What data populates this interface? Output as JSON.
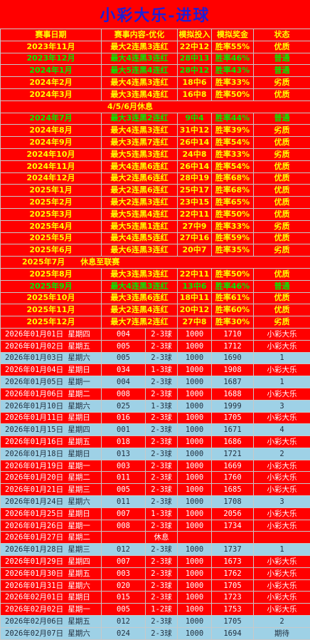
{
  "title": "小彩大乐-进球",
  "colors": {
    "red_bg": "#ff0000",
    "yellow_text": "#ffff00",
    "green_text": "#00ee00",
    "white_text": "#ffffff",
    "blue_bg": "#9ed1e6",
    "dark_text": "#1f2d3d",
    "title_text": "#1c1fd8"
  },
  "header": [
    "赛事日期",
    "赛事内容-优化",
    "模拟投入",
    "模拟奖金",
    "状态"
  ],
  "history": [
    {
      "type": "row",
      "cells": [
        "2023年11月",
        "最大2连黑3连红",
        "22中12",
        "胜率55%",
        "优质"
      ],
      "color": "yellow"
    },
    {
      "type": "row",
      "cells": [
        "2023年12月",
        "最大4连黑3连红",
        "28中13",
        "胜率46%",
        "普通"
      ],
      "color": "green"
    },
    {
      "type": "row",
      "cells": [
        "2024年1月",
        "最大5连黑4连红",
        "28中12",
        "胜率43%",
        "普通"
      ],
      "color": "green"
    },
    {
      "type": "row",
      "cells": [
        "2024年2月",
        "最大4连黑3连红",
        "18中6",
        "胜率33%",
        "劣质"
      ],
      "color": "yellow"
    },
    {
      "type": "row",
      "cells": [
        "2024年3月",
        "最大3连黑4连红",
        "16中8",
        "胜率50%",
        "优质"
      ],
      "color": "yellow"
    },
    {
      "type": "note",
      "text": "4/5/6月休息"
    },
    {
      "type": "row",
      "cells": [
        "2024年7月",
        "最大3连黑2连红",
        "9中4",
        "胜率44%",
        "普通"
      ],
      "color": "green"
    },
    {
      "type": "row",
      "cells": [
        "2024年8月",
        "最大4连黑3连红",
        "31中12",
        "胜率39%",
        "劣质"
      ],
      "color": "yellow"
    },
    {
      "type": "row",
      "cells": [
        "2024年9月",
        "最大3连黑7连红",
        "26中14",
        "胜率54%",
        "优质"
      ],
      "color": "yellow"
    },
    {
      "type": "row",
      "cells": [
        "2024年10月",
        "最大5连黑3连红",
        "24中8",
        "胜率33%",
        "劣质"
      ],
      "color": "yellow"
    },
    {
      "type": "row",
      "cells": [
        "2024年11月",
        "最大4连黑6连红",
        "26中14",
        "胜率54%",
        "优质"
      ],
      "color": "yellow"
    },
    {
      "type": "row",
      "cells": [
        "2024年12月",
        "最大2连黑6连红",
        "28中19",
        "胜率68%",
        "优质"
      ],
      "color": "yellow"
    },
    {
      "type": "row",
      "cells": [
        "2025年1月",
        "最大2连黑6连红",
        "25中17",
        "胜率68%",
        "优质"
      ],
      "color": "yellow"
    },
    {
      "type": "row",
      "cells": [
        "2025年2月",
        "最大2连黑3连红",
        "23中15",
        "胜率65%",
        "优质"
      ],
      "color": "yellow"
    },
    {
      "type": "row",
      "cells": [
        "2025年3月",
        "最大5连黑4连红",
        "22中11",
        "胜率50%",
        "优质"
      ],
      "color": "yellow"
    },
    {
      "type": "row",
      "cells": [
        "2025年4月",
        "最大5连黑1连红",
        "27中9",
        "胜率33%",
        "劣质"
      ],
      "color": "yellow"
    },
    {
      "type": "row",
      "cells": [
        "2025年5月",
        "最大4连黑5连红",
        "27中16",
        "胜率59%",
        "优质"
      ],
      "color": "yellow"
    },
    {
      "type": "row",
      "cells": [
        "2025年6月",
        "最大6连黑3连红",
        "20中7",
        "胜率35%",
        "劣质"
      ],
      "color": "yellow"
    },
    {
      "type": "note",
      "text": "2025年7月　　休息至联赛",
      "left": true
    },
    {
      "type": "row",
      "cells": [
        "2025年8月",
        "最大3连黑3连红",
        "22中11",
        "胜率50%",
        "优质"
      ],
      "color": "yellow"
    },
    {
      "type": "row",
      "cells": [
        "2025年9月",
        "最大4连黑3连红",
        "13中6",
        "胜率46%",
        "普通"
      ],
      "color": "green"
    },
    {
      "type": "row",
      "cells": [
        "2025年10月",
        "最大3连黑6连红",
        "18中11",
        "胜率61%",
        "优质"
      ],
      "color": "yellow"
    },
    {
      "type": "row",
      "cells": [
        "2025年11月",
        "最大2连黑4连红",
        "20中12",
        "胜率60%",
        "优质"
      ],
      "color": "yellow"
    },
    {
      "type": "row",
      "cells": [
        "2025年12月",
        "最大7连黑2连红",
        "27中8",
        "胜率30%",
        "劣质"
      ],
      "color": "yellow"
    }
  ],
  "daily": [
    {
      "cells": [
        "2026年01月01日 星期四",
        "004",
        "2-3球",
        "1000",
        "1710",
        "小彩大乐"
      ],
      "bg": "red"
    },
    {
      "cells": [
        "2026年01月02日 星期五",
        "005",
        "2-3球",
        "1000",
        "1712",
        "小彩大乐"
      ],
      "bg": "red"
    },
    {
      "cells": [
        "2026年01月03日 星期六",
        "005",
        "2-3球",
        "1000",
        "1690",
        "1"
      ],
      "bg": "blue"
    },
    {
      "cells": [
        "2026年01月04日 星期日",
        "034",
        "1-3球",
        "1000",
        "1908",
        "小彩大乐"
      ],
      "bg": "red"
    },
    {
      "cells": [
        "2026年01月05日 星期一",
        "004",
        "2-3球",
        "1000",
        "1687",
        "1"
      ],
      "bg": "blue"
    },
    {
      "cells": [
        "2026年01月06日 星期二",
        "008",
        "2-3球",
        "1000",
        "1688",
        "小彩大乐"
      ],
      "bg": "red"
    },
    {
      "cells": [
        "2026年01月10日 星期六",
        "025",
        "1-3球",
        "1000",
        "1999",
        "3"
      ],
      "bg": "blue"
    },
    {
      "cells": [
        "2026年01月11日 星期日",
        "016",
        "2-3球",
        "1000",
        "1705",
        "小彩大乐"
      ],
      "bg": "red"
    },
    {
      "cells": [
        "2026年01月15日 星期四",
        "001",
        "2-3球",
        "1000",
        "1671",
        "4"
      ],
      "bg": "blue"
    },
    {
      "cells": [
        "2026年01月16日 星期五",
        "018",
        "2-3球",
        "1000",
        "1686",
        "小彩大乐"
      ],
      "bg": "red"
    },
    {
      "cells": [
        "2026年01月18日 星期日",
        "013",
        "2-3球",
        "1000",
        "1721",
        "2"
      ],
      "bg": "blue"
    },
    {
      "cells": [
        "2026年01月19日 星期一",
        "003",
        "2-3球",
        "1000",
        "1669",
        "小彩大乐"
      ],
      "bg": "red"
    },
    {
      "cells": [
        "2026年01月20日 星期二",
        "011",
        "2-3球",
        "1000",
        "1760",
        "小彩大乐"
      ],
      "bg": "red"
    },
    {
      "cells": [
        "2026年01月21日 星期三",
        "005",
        "2-3球",
        "1000",
        "1685",
        "小彩大乐"
      ],
      "bg": "red"
    },
    {
      "cells": [
        "2026年01月24日 星期六",
        "011",
        "2-3球",
        "1000",
        "1708",
        "3"
      ],
      "bg": "blue"
    },
    {
      "cells": [
        "2026年01月25日 星期日",
        "007",
        "1-3球",
        "1000",
        "2056",
        "小彩大乐"
      ],
      "bg": "red"
    },
    {
      "cells": [
        "2026年01月26日 星期一",
        "008",
        "2-3球",
        "1000",
        "1734",
        "小彩大乐"
      ],
      "bg": "red"
    },
    {
      "cells": [
        "2026年01月27日 星期二",
        "",
        "休息",
        "",
        "",
        ""
      ],
      "bg": "red"
    },
    {
      "cells": [
        "2026年01月28日 星期三",
        "012",
        "2-3球",
        "1000",
        "1737",
        "1"
      ],
      "bg": "blue"
    },
    {
      "cells": [
        "2026年01月29日 星期四",
        "007",
        "2-3球",
        "1000",
        "1673",
        "小彩大乐"
      ],
      "bg": "red"
    },
    {
      "cells": [
        "2026年01月30日 星期五",
        "003",
        "2-3球",
        "1000",
        "1762",
        "小彩大乐"
      ],
      "bg": "red"
    },
    {
      "cells": [
        "2026年01月31日 星期六",
        "020",
        "2-3球",
        "1000",
        "1705",
        "小彩大乐"
      ],
      "bg": "red"
    },
    {
      "cells": [
        "2026年02月01日 星期日",
        "015",
        "2-3球",
        "1000",
        "1723",
        "小彩大乐"
      ],
      "bg": "red"
    },
    {
      "cells": [
        "2026年02月02日 星期一",
        "005",
        "1-2球",
        "1000",
        "1753",
        "小彩大乐"
      ],
      "bg": "red"
    },
    {
      "cells": [
        "2026年02月06日 星期五",
        "012",
        "2-3球",
        "1000",
        "1705",
        "2"
      ],
      "bg": "blue"
    },
    {
      "cells": [
        "2026年02月07日 星期六",
        "024",
        "2-3球",
        "1000",
        "1694",
        "期待"
      ],
      "bg": "blue"
    }
  ]
}
